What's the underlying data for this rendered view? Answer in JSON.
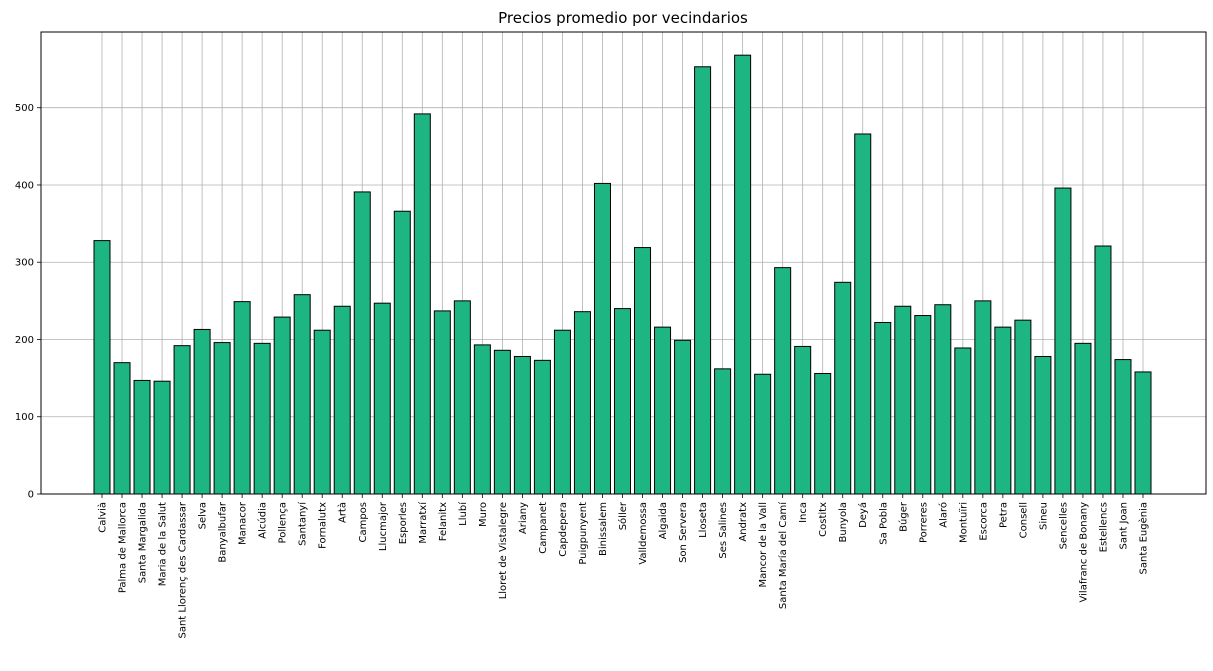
{
  "chart_data": {
    "type": "bar",
    "title": "Precios promedio por vecindarios",
    "xlabel": "",
    "ylabel": "",
    "ylim": [
      0,
      598
    ],
    "yticks": [
      0,
      100,
      200,
      300,
      400,
      500
    ],
    "grid": true,
    "colors": {
      "bar_fill": "#1db581",
      "bar_edge": "#000000",
      "grid": "#b0b0b0"
    },
    "categories": [
      "Calvià",
      "Palma de Mallorca",
      "Santa Margalida",
      "Maria de la Salut",
      "Sant Llorenç des Cardassar",
      "Selva",
      "Banyalbufar",
      "Manacor",
      "Alcúdia",
      "Pollença",
      "Santanyí",
      "Fornalutx",
      "Artà",
      "Campos",
      "Llucmajor",
      "Esporles",
      "Marratxí",
      "Felanitx",
      "Llubí",
      "Muro",
      "Lloret de Vistalegre",
      "Ariany",
      "Campanet",
      "Capdepera",
      "Puigpunyent",
      "Binissalem",
      "Sóller",
      "Valldemossa",
      "Algaida",
      "Son Servera",
      "Lloseta",
      "Ses Salines",
      "Andratx",
      "Mancor de la Vall",
      "Santa María del Camí",
      "Inca",
      "Costitx",
      "Bunyola",
      "Deyá",
      "Sa Pobla",
      "Búger",
      "Porreres",
      "Alaró",
      "Montuïri",
      "Escorca",
      "Petra",
      "Consell",
      "Sineu",
      "Sencelles",
      "Vilafranc de Bonany",
      "Estellencs",
      "Sant Joan",
      "Santa Eugènia"
    ],
    "values": [
      328,
      170,
      147,
      146,
      192,
      213,
      196,
      249,
      195,
      229,
      258,
      212,
      243,
      391,
      247,
      366,
      492,
      237,
      250,
      193,
      186,
      178,
      173,
      212,
      236,
      402,
      240,
      319,
      216,
      199,
      553,
      162,
      568,
      155,
      293,
      191,
      156,
      274,
      466,
      222,
      243,
      231,
      245,
      189,
      250,
      216,
      225,
      178,
      396,
      195,
      321,
      174,
      158
    ]
  }
}
